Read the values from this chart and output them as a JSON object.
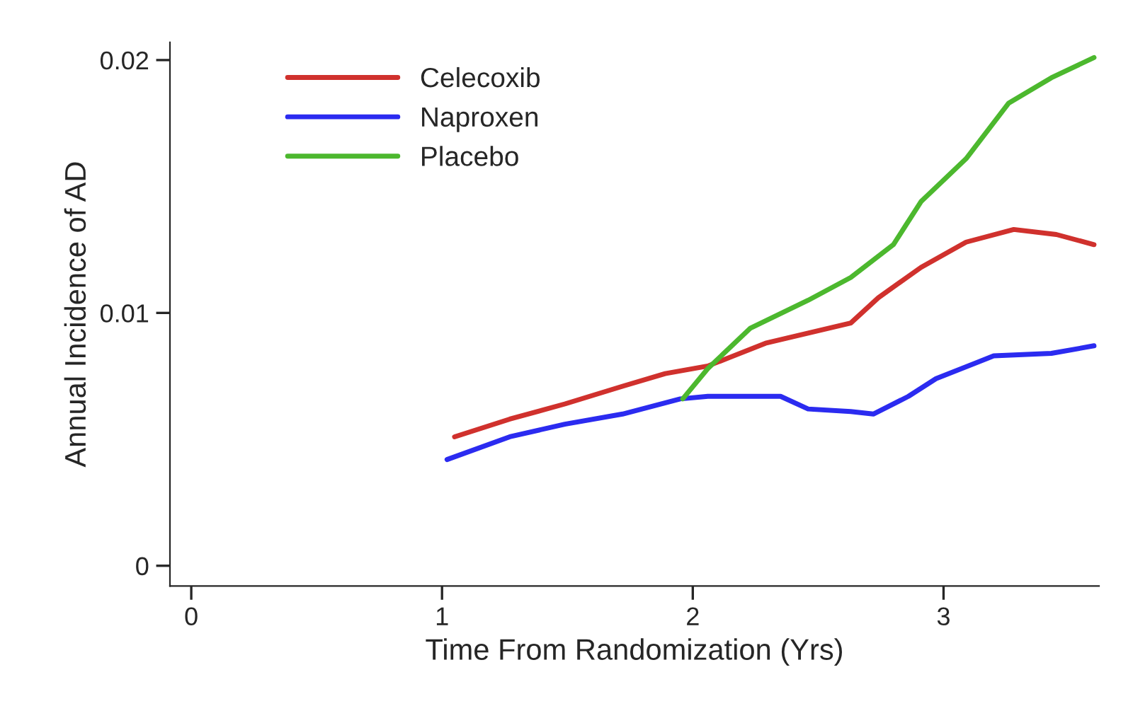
{
  "chart_data": {
    "type": "line",
    "xlabel": "Time From Randomization (Yrs)",
    "ylabel": "Annual Incidence of AD",
    "xlim": [
      -0.085,
      3.62
    ],
    "xticks": [
      0,
      1,
      2,
      3
    ],
    "ylim": [
      -0.0008,
      0.0207
    ],
    "yticks": [
      0,
      0.01,
      0.02
    ],
    "grid": false,
    "legend": "top left",
    "marker": "none",
    "line_style": "solid",
    "series": [
      {
        "name": "Celecoxib",
        "color": "#d0312d",
        "x": [
          1.05,
          1.27,
          1.49,
          1.72,
          1.89,
          2.06,
          2.29,
          2.46,
          2.63,
          2.74,
          2.91,
          3.09,
          3.28,
          3.45,
          3.6
        ],
        "values": [
          0.0051,
          0.0058,
          0.0064,
          0.0071,
          0.0076,
          0.0079,
          0.0088,
          0.0092,
          0.0096,
          0.0106,
          0.0118,
          0.0128,
          0.0133,
          0.0131,
          0.0127
        ]
      },
      {
        "name": "Naproxen",
        "color": "#2b2bf0",
        "x": [
          1.02,
          1.27,
          1.49,
          1.72,
          1.95,
          2.06,
          2.35,
          2.46,
          2.63,
          2.72,
          2.86,
          2.97,
          3.2,
          3.43,
          3.6
        ],
        "values": [
          0.0042,
          0.0051,
          0.0056,
          0.006,
          0.0066,
          0.0067,
          0.0067,
          0.0062,
          0.0061,
          0.006,
          0.0067,
          0.0074,
          0.0083,
          0.0084,
          0.0087
        ]
      },
      {
        "name": "Placebo",
        "color": "#4cb82e",
        "x": [
          1.96,
          2.06,
          2.23,
          2.46,
          2.63,
          2.8,
          2.91,
          3.09,
          3.26,
          3.43,
          3.6
        ],
        "values": [
          0.0066,
          0.0078,
          0.0094,
          0.0105,
          0.0114,
          0.0127,
          0.0144,
          0.0161,
          0.0183,
          0.0193,
          0.0201
        ]
      }
    ]
  }
}
